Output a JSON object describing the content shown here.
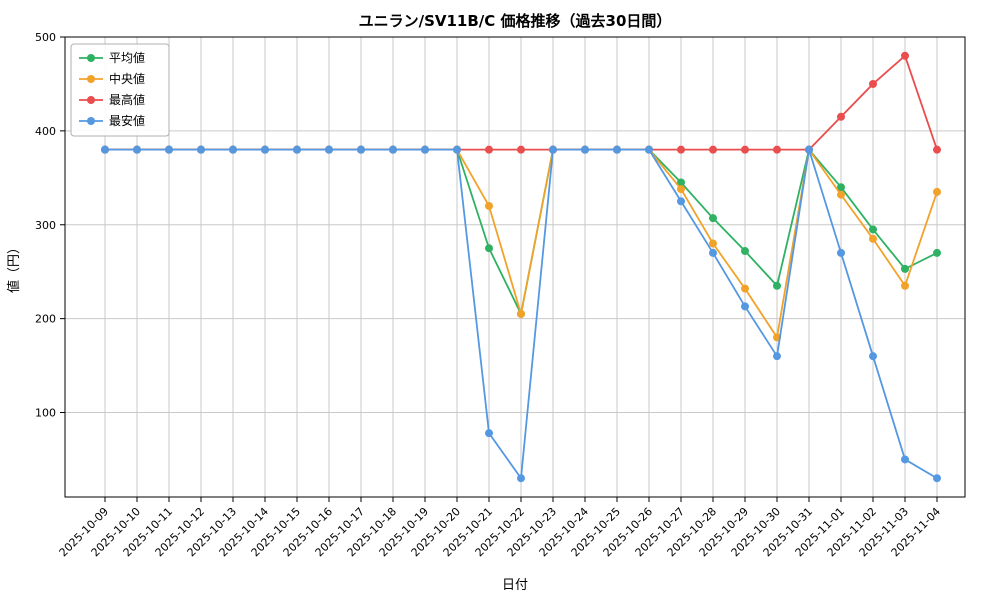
{
  "chart_data": {
    "type": "line",
    "title": "ユニラン/SV11B/C 価格推移（過去30日間）",
    "xlabel": "日付",
    "ylabel": "値（円）",
    "grid": true,
    "legend_position": "upper left",
    "ylim": [
      10,
      500
    ],
    "yticks": [
      100,
      200,
      300,
      400,
      500
    ],
    "x": [
      "2025-10-09",
      "2025-10-10",
      "2025-10-11",
      "2025-10-12",
      "2025-10-13",
      "2025-10-14",
      "2025-10-15",
      "2025-10-16",
      "2025-10-17",
      "2025-10-18",
      "2025-10-19",
      "2025-10-20",
      "2025-10-21",
      "2025-10-22",
      "2025-10-23",
      "2025-10-24",
      "2025-10-25",
      "2025-10-26",
      "2025-10-27",
      "2025-10-28",
      "2025-10-29",
      "2025-10-30",
      "2025-10-31",
      "2025-11-01",
      "2025-11-02",
      "2025-11-03",
      "2025-11-04"
    ],
    "series": [
      {
        "id": "average",
        "name": "平均値",
        "color": "#2eb262",
        "values": [
          380,
          380,
          380,
          380,
          380,
          380,
          380,
          380,
          380,
          380,
          380,
          380,
          275,
          205,
          380,
          380,
          380,
          380,
          345,
          307,
          272,
          235,
          380,
          340,
          295,
          253,
          270
        ]
      },
      {
        "id": "median",
        "name": "中央値",
        "color": "#f2a229",
        "values": [
          380,
          380,
          380,
          380,
          380,
          380,
          380,
          380,
          380,
          380,
          380,
          380,
          320,
          205,
          380,
          380,
          380,
          380,
          338,
          280,
          232,
          180,
          380,
          332,
          285,
          235,
          335
        ]
      },
      {
        "id": "max",
        "name": "最高値",
        "color": "#ea4d4d",
        "values": [
          380,
          380,
          380,
          380,
          380,
          380,
          380,
          380,
          380,
          380,
          380,
          380,
          380,
          380,
          380,
          380,
          380,
          380,
          380,
          380,
          380,
          380,
          380,
          415,
          450,
          480,
          380
        ]
      },
      {
        "id": "min",
        "name": "最安値",
        "color": "#5598e2",
        "values": [
          380,
          380,
          380,
          380,
          380,
          380,
          380,
          380,
          380,
          380,
          380,
          380,
          78,
          30,
          380,
          380,
          380,
          380,
          325,
          270,
          213,
          160,
          380,
          270,
          160,
          50,
          30
        ]
      }
    ]
  }
}
